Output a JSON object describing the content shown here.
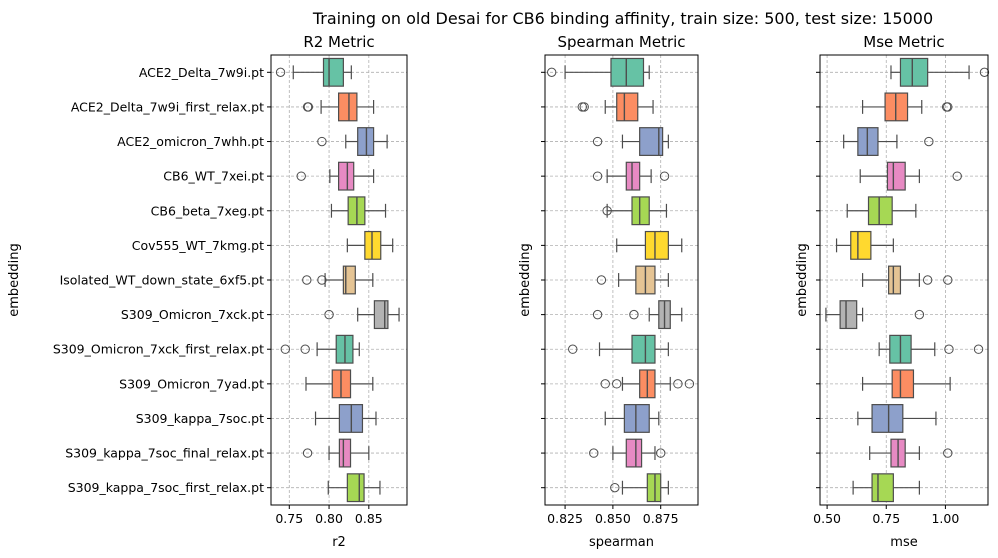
{
  "suptitle": "Training on old Desai for CB6 binding affinity, train size: 500, test size: 15000",
  "palette": [
    "#66c2a5",
    "#fc8d62",
    "#8da0cb",
    "#e78ac3",
    "#a6d854",
    "#ffd92f",
    "#e5c494",
    "#b3b3b3",
    "#66c2a5",
    "#fc8d62",
    "#8da0cb",
    "#e78ac3",
    "#a6d854"
  ],
  "categories": [
    "ACE2_Delta_7w9i.pt",
    "ACE2_Delta_7w9i_first_relax.pt",
    "ACE2_omicron_7whh.pt",
    "CB6_WT_7xei.pt",
    "CB6_beta_7xeg.pt",
    "Cov555_WT_7kmg.pt",
    "Isolated_WT_down_state_6xf5.pt",
    "S309_Omicron_7xck.pt",
    "S309_Omicron_7xck_first_relax.pt",
    "S309_Omicron_7yad.pt",
    "S309_kappa_7soc.pt",
    "S309_kappa_7soc_final_relax.pt",
    "S309_kappa_7soc_first_relax.pt"
  ],
  "chart_data": [
    {
      "type": "box",
      "title": "R2 Metric",
      "xlabel": "r2",
      "ylabel": "embedding",
      "xlim": [
        0.727,
        0.898
      ],
      "ticks": [
        0.75,
        0.8,
        0.85
      ],
      "tick_labels": [
        "0.75",
        "0.80",
        "0.85"
      ],
      "grid": true,
      "boxes": [
        {
          "whislo": 0.755,
          "q1": 0.793,
          "med": 0.8,
          "q3": 0.818,
          "whishi": 0.828,
          "fliers": [
            0.739
          ]
        },
        {
          "whislo": 0.79,
          "q1": 0.812,
          "med": 0.825,
          "q3": 0.835,
          "whishi": 0.856,
          "fliers": [
            0.773,
            0.774
          ]
        },
        {
          "whislo": 0.821,
          "q1": 0.836,
          "med": 0.847,
          "q3": 0.856,
          "whishi": 0.873,
          "fliers": [
            0.791
          ]
        },
        {
          "whislo": 0.801,
          "q1": 0.812,
          "med": 0.823,
          "q3": 0.831,
          "whishi": 0.856,
          "fliers": [
            0.765
          ]
        },
        {
          "whislo": 0.803,
          "q1": 0.824,
          "med": 0.835,
          "q3": 0.845,
          "whishi": 0.871,
          "fliers": []
        },
        {
          "whislo": 0.823,
          "q1": 0.845,
          "med": 0.854,
          "q3": 0.865,
          "whishi": 0.88,
          "fliers": []
        },
        {
          "whislo": 0.795,
          "q1": 0.818,
          "med": 0.821,
          "q3": 0.833,
          "whishi": 0.855,
          "fliers": [
            0.772,
            0.791
          ]
        },
        {
          "whislo": 0.836,
          "q1": 0.857,
          "med": 0.87,
          "q3": 0.874,
          "whishi": 0.888,
          "fliers": [
            0.8
          ]
        },
        {
          "whislo": 0.785,
          "q1": 0.809,
          "med": 0.82,
          "q3": 0.83,
          "whishi": 0.838,
          "fliers": [
            0.745,
            0.77
          ]
        },
        {
          "whislo": 0.771,
          "q1": 0.804,
          "med": 0.815,
          "q3": 0.827,
          "whishi": 0.855,
          "fliers": []
        },
        {
          "whislo": 0.783,
          "q1": 0.813,
          "med": 0.828,
          "q3": 0.842,
          "whishi": 0.859,
          "fliers": []
        },
        {
          "whislo": 0.8,
          "q1": 0.813,
          "med": 0.818,
          "q3": 0.827,
          "whishi": 0.85,
          "fliers": [
            0.773
          ]
        },
        {
          "whislo": 0.799,
          "q1": 0.823,
          "med": 0.838,
          "q3": 0.844,
          "whishi": 0.864,
          "fliers": []
        }
      ]
    },
    {
      "type": "box",
      "title": "Spearman Metric",
      "xlabel": "spearman",
      "ylabel": "embedding",
      "xlim": [
        0.8145,
        0.8945
      ],
      "ticks": [
        0.825,
        0.85,
        0.875
      ],
      "tick_labels": [
        "0.825",
        "0.850",
        "0.875"
      ],
      "grid": true,
      "boxes": [
        {
          "whislo": 0.825,
          "q1": 0.849,
          "med": 0.857,
          "q3": 0.866,
          "whishi": 0.869,
          "fliers": [
            0.818
          ]
        },
        {
          "whislo": 0.846,
          "q1": 0.852,
          "med": 0.856,
          "q3": 0.863,
          "whishi": 0.871,
          "fliers": [
            0.834,
            0.835
          ]
        },
        {
          "whislo": 0.855,
          "q1": 0.864,
          "med": 0.874,
          "q3": 0.876,
          "whishi": 0.879,
          "fliers": [
            0.842
          ]
        },
        {
          "whislo": 0.847,
          "q1": 0.857,
          "med": 0.86,
          "q3": 0.864,
          "whishi": 0.87,
          "fliers": [
            0.842,
            0.877
          ]
        },
        {
          "whislo": 0.847,
          "q1": 0.86,
          "med": 0.864,
          "q3": 0.869,
          "whishi": 0.878,
          "fliers": [
            0.847
          ]
        },
        {
          "whislo": 0.852,
          "q1": 0.867,
          "med": 0.872,
          "q3": 0.879,
          "whishi": 0.886,
          "fliers": []
        },
        {
          "whislo": 0.853,
          "q1": 0.862,
          "med": 0.867,
          "q3": 0.872,
          "whishi": 0.879,
          "fliers": [
            0.844
          ]
        },
        {
          "whislo": 0.869,
          "q1": 0.874,
          "med": 0.877,
          "q3": 0.88,
          "whishi": 0.886,
          "fliers": [
            0.842,
            0.861
          ]
        },
        {
          "whislo": 0.843,
          "q1": 0.86,
          "med": 0.867,
          "q3": 0.872,
          "whishi": 0.879,
          "fliers": [
            0.829
          ]
        },
        {
          "whislo": 0.855,
          "q1": 0.864,
          "med": 0.868,
          "q3": 0.872,
          "whishi": 0.88,
          "fliers": [
            0.846,
            0.852,
            0.884,
            0.89
          ]
        },
        {
          "whislo": 0.846,
          "q1": 0.856,
          "med": 0.862,
          "q3": 0.869,
          "whishi": 0.874,
          "fliers": []
        },
        {
          "whislo": 0.85,
          "q1": 0.857,
          "med": 0.862,
          "q3": 0.865,
          "whishi": 0.872,
          "fliers": [
            0.84,
            0.875
          ]
        },
        {
          "whislo": 0.855,
          "q1": 0.868,
          "med": 0.872,
          "q3": 0.875,
          "whishi": 0.879,
          "fliers": [
            0.851
          ]
        }
      ]
    },
    {
      "type": "box",
      "title": "Mse Metric",
      "xlabel": "mse",
      "ylabel": "embedding",
      "xlim": [
        0.47,
        1.18
      ],
      "ticks": [
        0.5,
        0.75,
        1.0
      ],
      "tick_labels": [
        "0.50",
        "0.75",
        "1.00"
      ],
      "grid": true,
      "boxes": [
        {
          "whislo": 0.77,
          "q1": 0.81,
          "med": 0.86,
          "q3": 0.925,
          "whishi": 1.1,
          "fliers": [
            1.165
          ]
        },
        {
          "whislo": 0.65,
          "q1": 0.745,
          "med": 0.79,
          "q3": 0.84,
          "whishi": 0.9,
          "fliers": [
            1.005,
            1.01
          ]
        },
        {
          "whislo": 0.57,
          "q1": 0.63,
          "med": 0.67,
          "q3": 0.715,
          "whishi": 0.795,
          "fliers": [
            0.93
          ]
        },
        {
          "whislo": 0.64,
          "q1": 0.755,
          "med": 0.78,
          "q3": 0.83,
          "whishi": 0.89,
          "fliers": [
            1.05
          ]
        },
        {
          "whislo": 0.585,
          "q1": 0.675,
          "med": 0.72,
          "q3": 0.775,
          "whishi": 0.875,
          "fliers": []
        },
        {
          "whislo": 0.54,
          "q1": 0.6,
          "med": 0.63,
          "q3": 0.685,
          "whishi": 0.78,
          "fliers": []
        },
        {
          "whislo": 0.65,
          "q1": 0.76,
          "med": 0.78,
          "q3": 0.81,
          "whishi": 0.89,
          "fliers": [
            0.925,
            1.01
          ]
        },
        {
          "whislo": 0.495,
          "q1": 0.555,
          "med": 0.58,
          "q3": 0.625,
          "whishi": 0.65,
          "fliers": [
            0.89
          ]
        },
        {
          "whislo": 0.72,
          "q1": 0.765,
          "med": 0.81,
          "q3": 0.855,
          "whishi": 0.955,
          "fliers": [
            1.015,
            1.14
          ]
        },
        {
          "whislo": 0.65,
          "q1": 0.775,
          "med": 0.81,
          "q3": 0.865,
          "whishi": 1.02,
          "fliers": []
        },
        {
          "whislo": 0.63,
          "q1": 0.69,
          "med": 0.76,
          "q3": 0.82,
          "whishi": 0.96,
          "fliers": []
        },
        {
          "whislo": 0.68,
          "q1": 0.77,
          "med": 0.8,
          "q3": 0.83,
          "whishi": 0.89,
          "fliers": [
            1.01
          ]
        },
        {
          "whislo": 0.61,
          "q1": 0.69,
          "med": 0.715,
          "q3": 0.78,
          "whishi": 0.89,
          "fliers": []
        }
      ]
    }
  ]
}
